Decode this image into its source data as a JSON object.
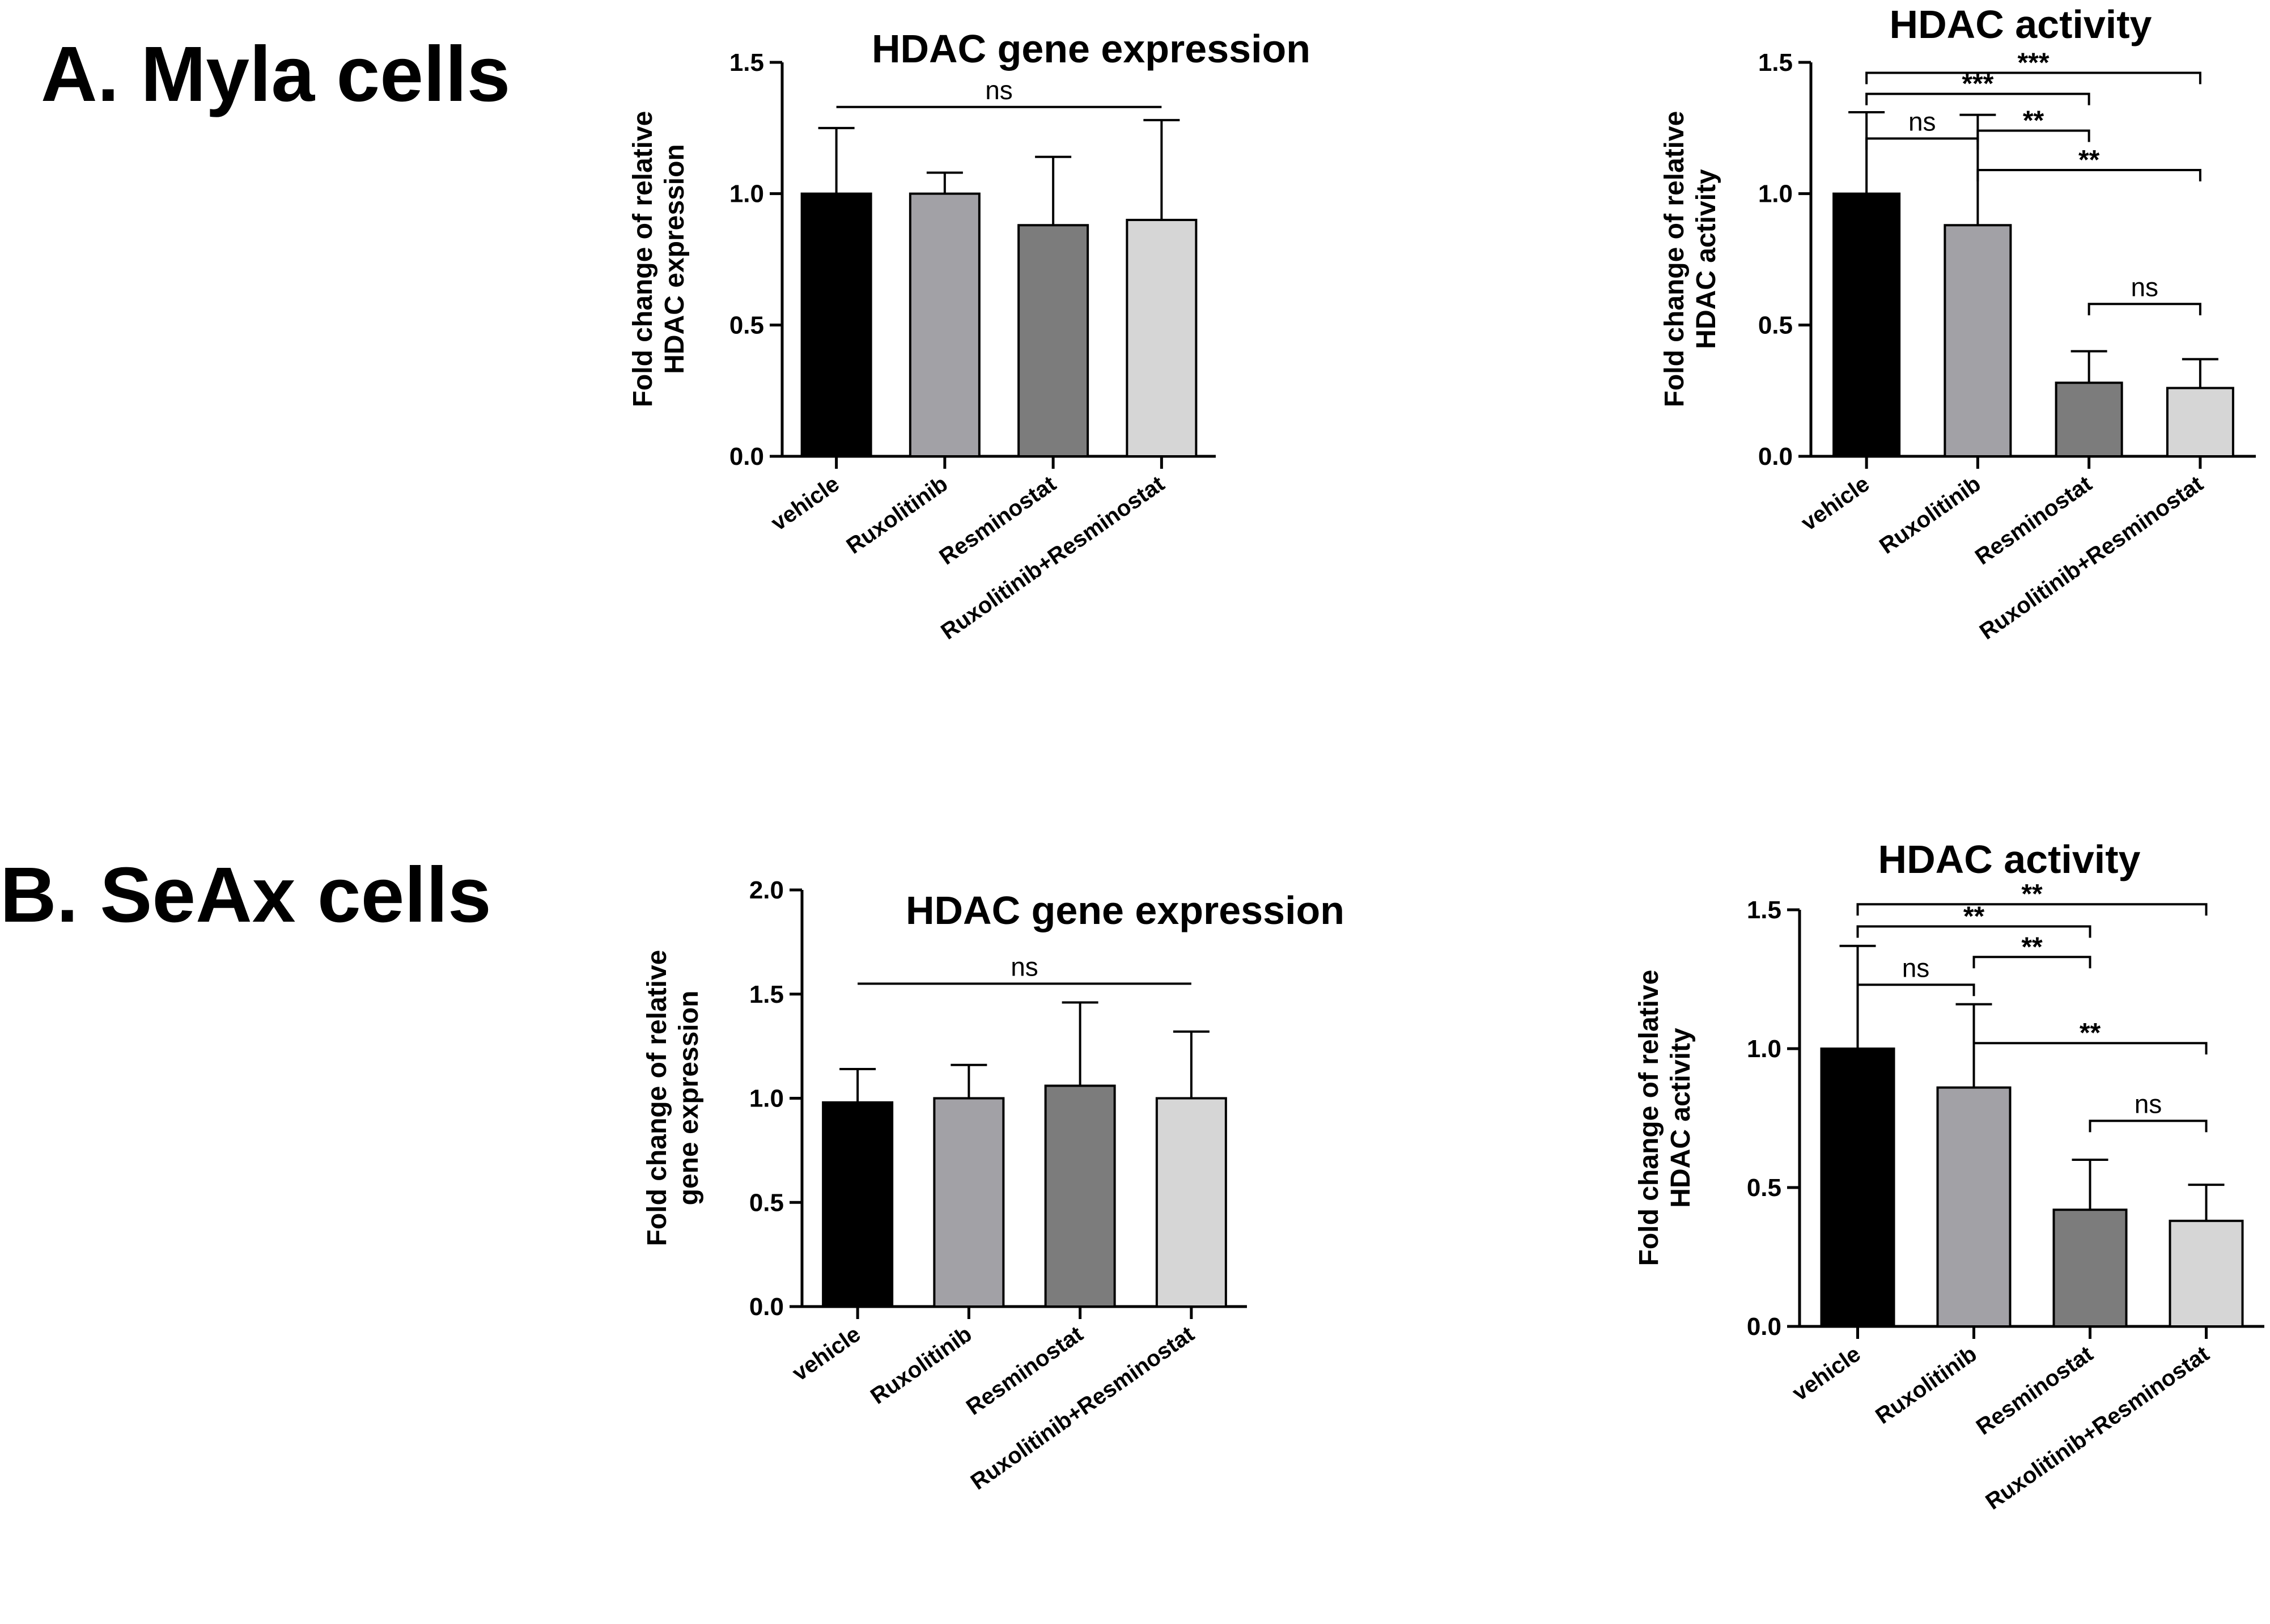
{
  "panels": {
    "a": {
      "label": "A. Myla cells"
    },
    "b": {
      "label": "B. SeAx cells"
    }
  },
  "colors": {
    "vehicle": "#000000",
    "ruxolitinib": "#a2a1a6",
    "resminostat": "#7c7c7c",
    "combination": "#d6d6d6",
    "axis": "#000000"
  },
  "chart_data": [
    {
      "id": "a-expr",
      "type": "bar",
      "title": "HDAC gene expression",
      "ylabel": [
        "Fold change of relative",
        "HDAC  expression"
      ],
      "xlabel": "",
      "categories": [
        "vehicle",
        "Ruxolitinib",
        "Resminostat",
        "Ruxolitinib+Resminostat"
      ],
      "values": [
        1.0,
        1.0,
        0.88,
        0.9
      ],
      "errors": [
        0.25,
        0.08,
        0.26,
        0.38
      ],
      "ylim": [
        0,
        1.5
      ],
      "yticks": [
        0,
        0.5,
        1.0,
        1.5
      ],
      "tick_labels": [
        "0.0",
        "0.5",
        "1.0",
        "1.5"
      ],
      "significance": [
        {
          "from": 0,
          "to": 3,
          "label": "ns",
          "y": 1.33,
          "style": "line"
        }
      ]
    },
    {
      "id": "a-act",
      "type": "bar",
      "title": "HDAC activity",
      "ylabel": [
        "Fold change of relative",
        "HDAC activity"
      ],
      "xlabel": "",
      "categories": [
        "vehicle",
        "Ruxolitinib",
        "Resminostat",
        "Ruxolitinib+Resminostat"
      ],
      "values": [
        1.0,
        0.88,
        0.28,
        0.26
      ],
      "errors": [
        0.31,
        0.42,
        0.12,
        0.11
      ],
      "ylim": [
        0,
        1.5
      ],
      "yticks": [
        0,
        0.5,
        1.0,
        1.5
      ],
      "tick_labels": [
        "0.0",
        "0.5",
        "1.0",
        "1.5"
      ],
      "significance": [
        {
          "from": 0,
          "to": 3,
          "label": "***",
          "y": 1.46,
          "style": "bracket"
        },
        {
          "from": 0,
          "to": 2,
          "label": "***",
          "y": 1.38,
          "style": "bracket"
        },
        {
          "from": 0,
          "to": 1,
          "label": "ns",
          "y": 1.21,
          "style": "bracket"
        },
        {
          "from": 1,
          "to": 2,
          "label": "**",
          "y": 1.24,
          "style": "bracket"
        },
        {
          "from": 1,
          "to": 3,
          "label": "**",
          "y": 1.09,
          "style": "bracket"
        },
        {
          "from": 2,
          "to": 3,
          "label": "ns",
          "y": 0.58,
          "style": "bracket"
        }
      ]
    },
    {
      "id": "b-expr",
      "type": "bar",
      "title": "HDAC gene expression",
      "ylabel": [
        "Fold change of relative",
        "gene expression"
      ],
      "xlabel": "",
      "categories": [
        "vehicle",
        "Ruxolitinib",
        "Resminostat",
        "Ruxolitinib+Resminostat"
      ],
      "values": [
        0.98,
        1.0,
        1.06,
        1.0
      ],
      "errors": [
        0.16,
        0.16,
        0.4,
        0.32
      ],
      "ylim": [
        0,
        2.0
      ],
      "yticks": [
        0,
        0.5,
        1.0,
        1.5,
        2.0
      ],
      "tick_labels": [
        "0.0",
        "0.5",
        "1.0",
        "1.5",
        "2.0"
      ],
      "significance": [
        {
          "from": 0,
          "to": 3,
          "label": "ns",
          "y": 1.55,
          "style": "line"
        }
      ]
    },
    {
      "id": "b-act",
      "type": "bar",
      "title": "HDAC activity",
      "ylabel": [
        "Fold change of relative",
        "HDAC activity"
      ],
      "xlabel": "",
      "categories": [
        "vehicle",
        "Ruxolitinib",
        "Resminostat",
        "Ruxolitinib+Resminostat"
      ],
      "values": [
        1.0,
        0.86,
        0.42,
        0.38
      ],
      "errors": [
        0.37,
        0.3,
        0.18,
        0.13
      ],
      "ylim": [
        0,
        1.5
      ],
      "yticks": [
        0,
        0.5,
        1.0,
        1.5
      ],
      "tick_labels": [
        "0.0",
        "0.5",
        "1.0",
        "1.5"
      ],
      "significance": [
        {
          "from": 0,
          "to": 3,
          "label": "**",
          "y": 1.52,
          "style": "bracket"
        },
        {
          "from": 0,
          "to": 2,
          "label": "**",
          "y": 1.44,
          "style": "bracket"
        },
        {
          "from": 0,
          "to": 1,
          "label": "ns",
          "y": 1.23,
          "style": "bracket"
        },
        {
          "from": 1,
          "to": 2,
          "label": "**",
          "y": 1.33,
          "style": "bracket"
        },
        {
          "from": 1,
          "to": 3,
          "label": "**",
          "y": 1.02,
          "style": "bracket"
        },
        {
          "from": 2,
          "to": 3,
          "label": "ns",
          "y": 0.74,
          "style": "bracket"
        }
      ]
    }
  ]
}
